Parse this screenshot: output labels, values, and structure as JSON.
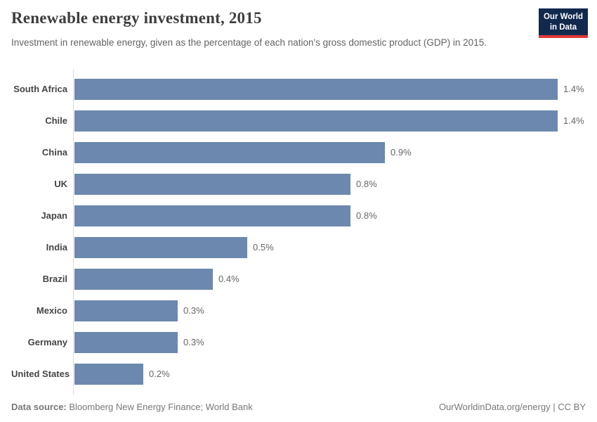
{
  "chart_data": {
    "type": "bar",
    "orientation": "horizontal",
    "title": "Renewable energy investment, 2015",
    "subtitle": "Investment in renewable energy, given as the percentage of each nation's gross domestic product (GDP) in 2015.",
    "categories": [
      "South Africa",
      "Chile",
      "China",
      "UK",
      "Japan",
      "India",
      "Brazil",
      "Mexico",
      "Germany",
      "United States"
    ],
    "values": [
      1.4,
      1.4,
      0.9,
      0.8,
      0.8,
      0.5,
      0.4,
      0.3,
      0.3,
      0.2
    ],
    "value_labels": [
      "1.4%",
      "1.4%",
      "0.9%",
      "0.8%",
      "0.8%",
      "0.5%",
      "0.4%",
      "0.3%",
      "0.3%",
      "0.2%"
    ],
    "xlabel": "",
    "ylabel": "",
    "xlim": [
      0,
      1.4
    ],
    "grid": false,
    "legend": "none"
  },
  "logo": {
    "line1": "Our World",
    "line2": "in Data"
  },
  "footer": {
    "datasource_label": "Data source:",
    "datasource_text": "Bloomberg New Energy Finance; World Bank",
    "attribution": "OurWorldinData.org/energy | CC BY"
  },
  "colors": {
    "bar": "#6c88ae",
    "axis": "#dcdcdc",
    "logo_bg": "#12294e",
    "logo_accent": "#e0373a",
    "title_text": "#3d3d3d",
    "subtitle_text": "#646464"
  }
}
